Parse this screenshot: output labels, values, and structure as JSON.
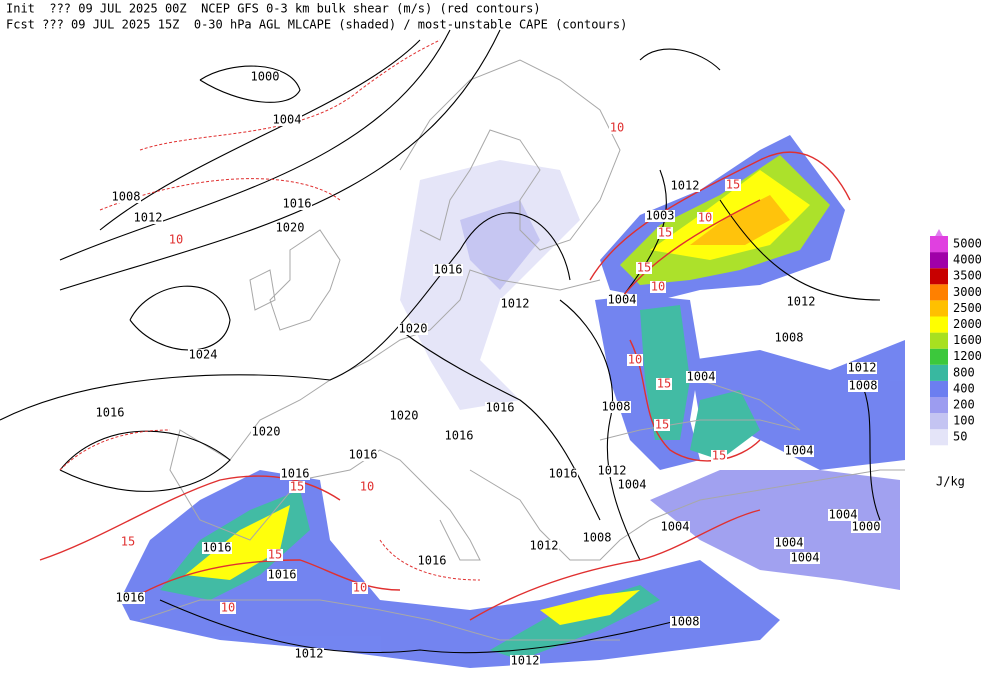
{
  "header": {
    "line1": "Init  ??? 09 JUL 2025 00Z  NCEP GFS 0-3 km bulk shear (m/s) (red contours)",
    "line2": "Fcst ??? 09 JUL 2025 15Z  0-30 hPa AGL MLCAPE (shaded) / most-unstable CAPE (contours)"
  },
  "isobar_labels": [
    "1000",
    "1004",
    "1008",
    "1012",
    "1016",
    "1020",
    "1016",
    "1012",
    "1020",
    "1024",
    "1016",
    "1020",
    "1020",
    "1016",
    "1016",
    "1016",
    "1016",
    "1016",
    "1016",
    "1016",
    "1012",
    "1012",
    "1008",
    "1016",
    "1012",
    "1008",
    "1012",
    "1004",
    "1016",
    "1008",
    "1004",
    "1003",
    "1012",
    "1012",
    "1008",
    "1004",
    "1012",
    "1008",
    "1004",
    "1004",
    "1004",
    "1004",
    "1004",
    "1000"
  ],
  "shear_labels": [
    "10",
    "15",
    "10",
    "15",
    "15",
    "10",
    "15",
    "10",
    "15",
    "15",
    "15",
    "15",
    "10",
    "10",
    "15",
    "10",
    "10"
  ],
  "legend": {
    "levels": [
      50,
      100,
      200,
      400,
      800,
      1200,
      1600,
      2000,
      2500,
      3000,
      3500,
      4000,
      5000
    ],
    "colors": [
      "#e4e4f8",
      "#c4c4f2",
      "#9c9cf0",
      "#6c7ef0",
      "#38b8a0",
      "#3cc83c",
      "#a8e020",
      "#ffff00",
      "#ffc000",
      "#ff8000",
      "#c80000",
      "#a000a8",
      "#e040e0"
    ],
    "unit": "J/kg"
  }
}
